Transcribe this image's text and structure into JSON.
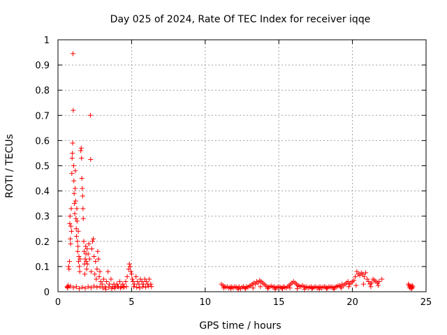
{
  "chart_data": {
    "type": "scatter",
    "title": "Day 025 of 2024, Rate Of TEC Index for receiver iqqe",
    "xlabel": "GPS time / hours",
    "ylabel": "ROTI / TECUs",
    "xlim": [
      0,
      25
    ],
    "ylim": [
      0,
      1
    ],
    "x_ticks": [
      "0",
      "5",
      "10",
      "15",
      "20",
      "25"
    ],
    "x_tick_values": [
      0,
      5,
      10,
      15,
      20,
      25
    ],
    "y_ticks": [
      "0",
      "0.1",
      "0.2",
      "0.3",
      "0.4",
      "0.5",
      "0.6",
      "0.7",
      "0.8",
      "0.9",
      "1"
    ],
    "y_tick_values": [
      0,
      0.1,
      0.2,
      0.3,
      0.4,
      0.5,
      0.6,
      0.7,
      0.8,
      0.9,
      1.0
    ],
    "grid": true,
    "marker": "+",
    "color": "#ff0000",
    "series": [
      {
        "points": [
          [
            0.62,
            0.02
          ],
          [
            0.66,
            0.015
          ],
          [
            0.7,
            0.025
          ],
          [
            0.72,
            0.1
          ],
          [
            0.75,
            0.09
          ],
          [
            0.78,
            0.12
          ],
          [
            0.8,
            0.27
          ],
          [
            0.82,
            0.3
          ],
          [
            0.84,
            0.21
          ],
          [
            0.86,
            0.19
          ],
          [
            0.88,
            0.26
          ],
          [
            0.9,
            0.33
          ],
          [
            0.92,
            0.24
          ],
          [
            0.94,
            0.47
          ],
          [
            0.96,
            0.53
          ],
          [
            0.98,
            0.55
          ],
          [
            1.0,
            0.59
          ],
          [
            1.02,
            0.945
          ],
          [
            1.04,
            0.72
          ],
          [
            1.06,
            0.5
          ],
          [
            1.08,
            0.44
          ],
          [
            1.1,
            0.39
          ],
          [
            1.12,
            0.35
          ],
          [
            1.14,
            0.31
          ],
          [
            1.16,
            0.41
          ],
          [
            1.18,
            0.48
          ],
          [
            1.2,
            0.36
          ],
          [
            1.22,
            0.29
          ],
          [
            1.24,
            0.25
          ],
          [
            1.26,
            0.22
          ],
          [
            1.28,
            0.33
          ],
          [
            1.3,
            0.28
          ],
          [
            1.32,
            0.2
          ],
          [
            1.34,
            0.16
          ],
          [
            1.36,
            0.18
          ],
          [
            1.38,
            0.24
          ],
          [
            1.4,
            0.12
          ],
          [
            1.42,
            0.14
          ],
          [
            1.45,
            0.1
          ],
          [
            1.48,
            0.08
          ],
          [
            1.5,
            0.13
          ],
          [
            1.55,
            0.56
          ],
          [
            1.58,
            0.57
          ],
          [
            1.6,
            0.53
          ],
          [
            1.62,
            0.45
          ],
          [
            1.65,
            0.41
          ],
          [
            1.68,
            0.38
          ],
          [
            1.7,
            0.33
          ],
          [
            1.72,
            0.29
          ],
          [
            1.75,
            0.2
          ],
          [
            1.78,
            0.16
          ],
          [
            1.8,
            0.11
          ],
          [
            1.82,
            0.07
          ],
          [
            1.85,
            0.13
          ],
          [
            1.88,
            0.18
          ],
          [
            1.9,
            0.15
          ],
          [
            1.92,
            0.12
          ],
          [
            1.95,
            0.09
          ],
          [
            1.98,
            0.17
          ],
          [
            2.0,
            0.11
          ],
          [
            2.05,
            0.15
          ],
          [
            2.1,
            0.19
          ],
          [
            2.15,
            0.13
          ],
          [
            2.2,
            0.7
          ],
          [
            2.22,
            0.525
          ],
          [
            2.25,
            0.08
          ],
          [
            2.3,
            0.17
          ],
          [
            2.35,
            0.2
          ],
          [
            2.4,
            0.21
          ],
          [
            2.45,
            0.14
          ],
          [
            2.5,
            0.07
          ],
          [
            2.55,
            0.12
          ],
          [
            2.6,
            0.05
          ],
          [
            2.65,
            0.09
          ],
          [
            2.7,
            0.16
          ],
          [
            2.75,
            0.13
          ],
          [
            2.8,
            0.06
          ],
          [
            2.85,
            0.08
          ],
          [
            2.9,
            0.04
          ],
          [
            3.0,
            0.03
          ],
          [
            3.1,
            0.05
          ],
          [
            3.2,
            0.02
          ],
          [
            3.3,
            0.04
          ],
          [
            3.4,
            0.08
          ],
          [
            3.5,
            0.03
          ],
          [
            3.6,
            0.05
          ],
          [
            3.7,
            0.02
          ],
          [
            3.8,
            0.03
          ],
          [
            3.9,
            0.02
          ],
          [
            4.0,
            0.03
          ],
          [
            4.1,
            0.02
          ],
          [
            4.2,
            0.04
          ],
          [
            4.3,
            0.02
          ],
          [
            4.4,
            0.03
          ],
          [
            4.5,
            0.02
          ],
          [
            4.6,
            0.04
          ],
          [
            4.7,
            0.06
          ],
          [
            4.8,
            0.09
          ],
          [
            4.85,
            0.11
          ],
          [
            4.9,
            0.1
          ],
          [
            4.95,
            0.08
          ],
          [
            5.0,
            0.07
          ],
          [
            5.05,
            0.05
          ],
          [
            5.1,
            0.04
          ],
          [
            5.2,
            0.03
          ],
          [
            5.3,
            0.06
          ],
          [
            5.4,
            0.04
          ],
          [
            5.5,
            0.03
          ],
          [
            5.6,
            0.05
          ],
          [
            5.7,
            0.04
          ],
          [
            5.8,
            0.03
          ],
          [
            5.9,
            0.05
          ],
          [
            6.0,
            0.04
          ],
          [
            6.1,
            0.03
          ],
          [
            6.2,
            0.05
          ],
          [
            6.3,
            0.03
          ],
          [
            0.65,
            0.018
          ],
          [
            0.85,
            0.022
          ],
          [
            1.05,
            0.016
          ],
          [
            1.25,
            0.02
          ],
          [
            1.45,
            0.012
          ],
          [
            1.65,
            0.018
          ],
          [
            1.85,
            0.014
          ],
          [
            2.05,
            0.02
          ],
          [
            2.25,
            0.016
          ],
          [
            2.45,
            0.022
          ],
          [
            2.65,
            0.018
          ],
          [
            2.85,
            0.02
          ],
          [
            3.05,
            0.015
          ],
          [
            3.25,
            0.01
          ],
          [
            3.45,
            0.018
          ],
          [
            3.65,
            0.012
          ],
          [
            3.85,
            0.015
          ],
          [
            4.05,
            0.02
          ],
          [
            4.25,
            0.015
          ],
          [
            4.45,
            0.018
          ],
          [
            4.65,
            0.02
          ],
          [
            5.15,
            0.02
          ],
          [
            5.35,
            0.018
          ],
          [
            5.55,
            0.015
          ],
          [
            5.75,
            0.02
          ],
          [
            5.95,
            0.018
          ],
          [
            6.15,
            0.022
          ],
          [
            6.35,
            0.02
          ],
          [
            11.1,
            0.03
          ],
          [
            11.2,
            0.025
          ],
          [
            11.3,
            0.02
          ],
          [
            11.4,
            0.018
          ],
          [
            11.5,
            0.02
          ],
          [
            11.6,
            0.015
          ],
          [
            11.7,
            0.018
          ],
          [
            11.8,
            0.02
          ],
          [
            11.9,
            0.015
          ],
          [
            12.0,
            0.02
          ],
          [
            12.1,
            0.018
          ],
          [
            12.2,
            0.015
          ],
          [
            12.3,
            0.02
          ],
          [
            12.4,
            0.012
          ],
          [
            12.5,
            0.018
          ],
          [
            12.6,
            0.02
          ],
          [
            12.7,
            0.015
          ],
          [
            12.8,
            0.02
          ],
          [
            12.9,
            0.018
          ],
          [
            13.0,
            0.022
          ],
          [
            13.1,
            0.025
          ],
          [
            13.2,
            0.03
          ],
          [
            13.3,
            0.035
          ],
          [
            13.4,
            0.03
          ],
          [
            13.5,
            0.04
          ],
          [
            13.6,
            0.035
          ],
          [
            13.7,
            0.045
          ],
          [
            13.8,
            0.04
          ],
          [
            13.9,
            0.035
          ],
          [
            14.0,
            0.03
          ],
          [
            14.1,
            0.025
          ],
          [
            14.2,
            0.02
          ],
          [
            14.3,
            0.018
          ],
          [
            14.4,
            0.02
          ],
          [
            14.5,
            0.022
          ],
          [
            14.6,
            0.018
          ],
          [
            14.7,
            0.02
          ],
          [
            14.8,
            0.015
          ],
          [
            14.9,
            0.018
          ],
          [
            15.0,
            0.02
          ],
          [
            15.1,
            0.018
          ],
          [
            15.2,
            0.015
          ],
          [
            15.3,
            0.02
          ],
          [
            15.4,
            0.018
          ],
          [
            15.5,
            0.015
          ],
          [
            15.6,
            0.02
          ],
          [
            15.7,
            0.025
          ],
          [
            15.8,
            0.03
          ],
          [
            15.9,
            0.035
          ],
          [
            16.0,
            0.04
          ],
          [
            16.1,
            0.035
          ],
          [
            16.2,
            0.03
          ],
          [
            16.3,
            0.025
          ],
          [
            16.4,
            0.022
          ],
          [
            16.5,
            0.02
          ],
          [
            16.6,
            0.025
          ],
          [
            16.7,
            0.02
          ],
          [
            16.8,
            0.018
          ],
          [
            16.9,
            0.02
          ],
          [
            17.0,
            0.015
          ],
          [
            17.1,
            0.018
          ],
          [
            17.2,
            0.02
          ],
          [
            17.3,
            0.015
          ],
          [
            17.4,
            0.018
          ],
          [
            17.5,
            0.02
          ],
          [
            17.6,
            0.015
          ],
          [
            17.7,
            0.018
          ],
          [
            17.8,
            0.02
          ],
          [
            17.9,
            0.015
          ],
          [
            18.0,
            0.018
          ],
          [
            18.1,
            0.02
          ],
          [
            18.2,
            0.018
          ],
          [
            18.3,
            0.015
          ],
          [
            18.4,
            0.02
          ],
          [
            18.5,
            0.018
          ],
          [
            18.6,
            0.02
          ],
          [
            18.7,
            0.015
          ],
          [
            18.8,
            0.018
          ],
          [
            18.9,
            0.02
          ],
          [
            19.0,
            0.022
          ],
          [
            19.1,
            0.025
          ],
          [
            19.2,
            0.02
          ],
          [
            19.3,
            0.03
          ],
          [
            19.4,
            0.025
          ],
          [
            19.5,
            0.03
          ],
          [
            19.6,
            0.035
          ],
          [
            19.7,
            0.04
          ],
          [
            19.8,
            0.03
          ],
          [
            19.9,
            0.035
          ],
          [
            20.0,
            0.04
          ],
          [
            20.1,
            0.045
          ],
          [
            20.2,
            0.06
          ],
          [
            20.3,
            0.08
          ],
          [
            20.4,
            0.07
          ],
          [
            20.5,
            0.065
          ],
          [
            20.6,
            0.075
          ],
          [
            20.7,
            0.07
          ],
          [
            20.8,
            0.06
          ],
          [
            20.9,
            0.075
          ],
          [
            21.0,
            0.05
          ],
          [
            21.1,
            0.04
          ],
          [
            21.2,
            0.03
          ],
          [
            21.3,
            0.035
          ],
          [
            21.4,
            0.05
          ],
          [
            21.5,
            0.045
          ],
          [
            21.6,
            0.04
          ],
          [
            21.7,
            0.035
          ],
          [
            21.8,
            0.04
          ],
          [
            22.0,
            0.05
          ],
          [
            11.25,
            0.015
          ],
          [
            11.75,
            0.012
          ],
          [
            12.25,
            0.01
          ],
          [
            12.75,
            0.012
          ],
          [
            13.25,
            0.015
          ],
          [
            13.75,
            0.02
          ],
          [
            14.25,
            0.012
          ],
          [
            14.75,
            0.01
          ],
          [
            15.25,
            0.012
          ],
          [
            15.75,
            0.015
          ],
          [
            16.25,
            0.012
          ],
          [
            16.75,
            0.01
          ],
          [
            17.25,
            0.012
          ],
          [
            17.75,
            0.01
          ],
          [
            18.25,
            0.012
          ],
          [
            18.75,
            0.01
          ],
          [
            19.25,
            0.015
          ],
          [
            19.75,
            0.02
          ],
          [
            20.25,
            0.025
          ],
          [
            20.75,
            0.03
          ],
          [
            21.25,
            0.02
          ],
          [
            21.75,
            0.025
          ],
          [
            23.8,
            0.03
          ],
          [
            23.85,
            0.025
          ],
          [
            23.9,
            0.02
          ],
          [
            23.95,
            0.022
          ],
          [
            24.0,
            0.018
          ],
          [
            24.05,
            0.015
          ],
          [
            24.1,
            0.02
          ],
          [
            24.0,
            0.012
          ],
          [
            23.9,
            0.015
          ],
          [
            24.05,
            0.025
          ]
        ]
      }
    ]
  }
}
